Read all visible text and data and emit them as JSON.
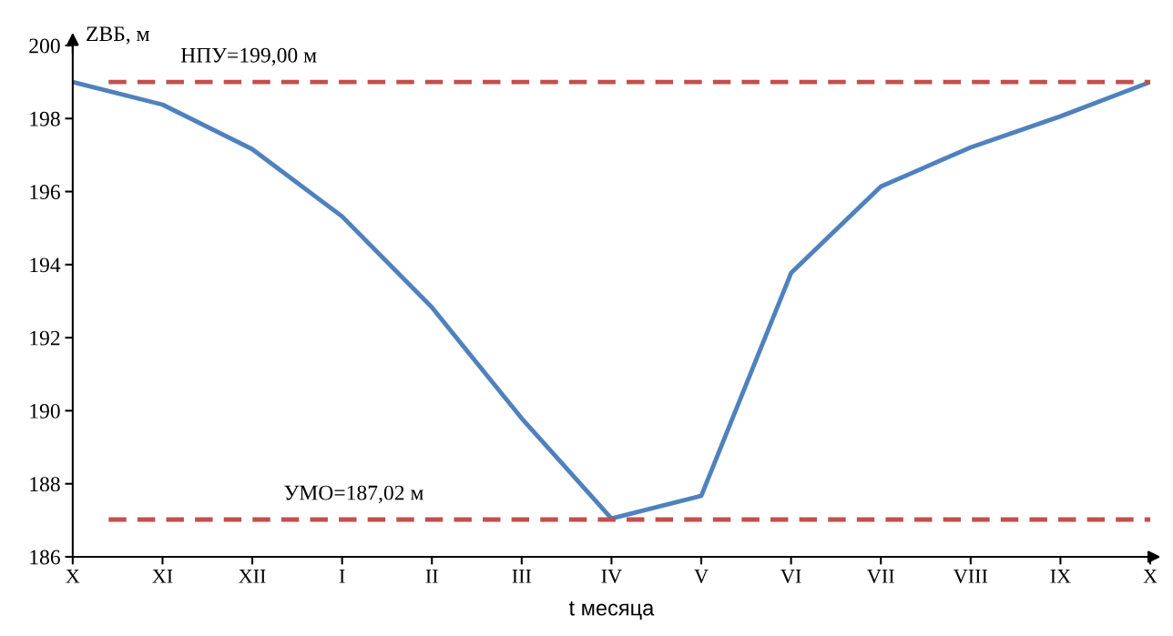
{
  "chart_data": {
    "type": "line",
    "xlabel": "t месяца",
    "ylabel": "ZВБ, м",
    "categories": [
      "X",
      "XI",
      "XII",
      "I",
      "II",
      "III",
      "IV",
      "V",
      "VI",
      "VII",
      "VIII",
      "IX",
      "X"
    ],
    "series": [
      {
        "color": "#4f81bd",
        "values": [
          199.0,
          198.38,
          197.16,
          195.32,
          192.83,
          189.79,
          187.05,
          187.67,
          193.77,
          196.14,
          197.21,
          198.06,
          199.0
        ]
      }
    ],
    "ylim": [
      186,
      200
    ],
    "yticks": [
      186,
      188,
      190,
      192,
      194,
      196,
      198,
      200
    ],
    "ref_lines": [
      {
        "axis": "y",
        "value": 199.0,
        "label": "НПУ=199,00 м",
        "color": "#c0504d",
        "line_style": "dashed"
      },
      {
        "axis": "y",
        "value": 187.02,
        "label": "УМО=187,02 м",
        "color": "#c0504d",
        "line_style": "dashed"
      }
    ],
    "grid": false,
    "legend": false,
    "marker": "none",
    "line_style": "solid"
  }
}
